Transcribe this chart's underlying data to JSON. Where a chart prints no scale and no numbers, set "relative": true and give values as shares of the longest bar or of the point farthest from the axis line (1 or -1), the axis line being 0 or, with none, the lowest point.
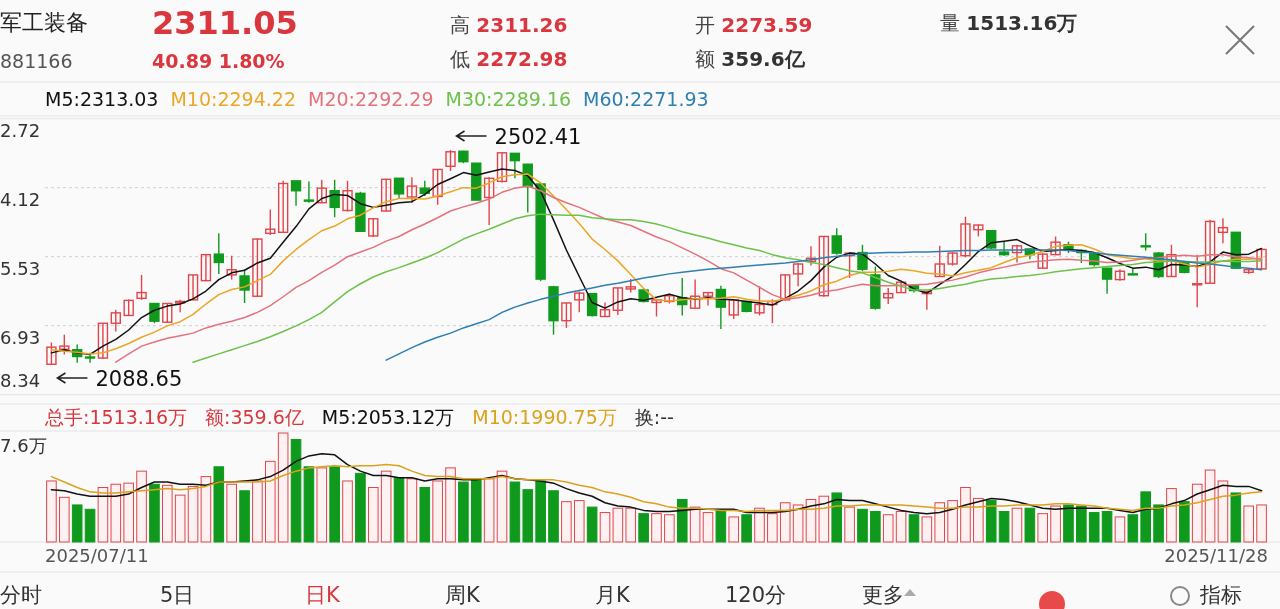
{
  "chart_data": [
    {
      "type": "candlestick",
      "title": "军工装备",
      "subtitle": "881166",
      "categories": [
        null,
        null,
        null,
        null,
        null,
        null,
        null,
        null,
        null,
        null,
        null,
        null,
        null,
        null,
        null,
        null,
        null,
        null,
        null,
        null,
        null,
        null,
        null,
        null,
        null,
        null,
        null,
        null,
        null,
        null,
        null,
        null,
        null,
        null,
        null,
        null,
        null,
        null,
        null,
        null,
        null,
        null,
        null,
        null,
        null,
        null,
        null,
        null,
        null,
        null,
        null,
        null,
        null,
        null,
        null,
        null,
        null,
        null,
        null,
        null,
        null,
        null,
        null,
        null,
        null,
        null,
        null,
        null,
        null,
        null,
        null,
        null,
        null,
        null,
        null,
        null,
        null,
        null,
        null,
        null,
        null,
        null,
        null,
        null,
        null,
        null,
        null,
        null,
        null,
        null,
        null,
        null,
        null,
        null,
        null
      ],
      "ohlc": [
        [
          2090,
          2132,
          2088.65,
          2123
        ],
        [
          2119,
          2147,
          2109,
          2125
        ],
        [
          2118,
          2128,
          2093,
          2105
        ],
        [
          2104,
          2112,
          2093,
          2103
        ],
        [
          2102,
          2169,
          2100,
          2169
        ],
        [
          2169,
          2195,
          2153,
          2189
        ],
        [
          2184,
          2215,
          2183,
          2213
        ],
        [
          2217,
          2262,
          2214,
          2228
        ],
        [
          2207,
          2207,
          2169,
          2173
        ],
        [
          2171,
          2207,
          2170,
          2207
        ],
        [
          2208,
          2214,
          2190,
          2211
        ],
        [
          2214,
          2262,
          2214,
          2262
        ],
        [
          2251,
          2301,
          2250,
          2301
        ],
        [
          2302,
          2342,
          2264,
          2286
        ],
        [
          2262,
          2299,
          2253,
          2272
        ],
        [
          2260,
          2272,
          2208,
          2233
        ],
        [
          2221,
          2332,
          2220,
          2331
        ],
        [
          2342,
          2388,
          2339,
          2350
        ],
        [
          2344,
          2443,
          2343,
          2438
        ],
        [
          2443,
          2443,
          2395,
          2424
        ],
        [
          2406,
          2442,
          2401,
          2404
        ],
        [
          2401,
          2445,
          2400,
          2429
        ],
        [
          2424,
          2445,
          2373,
          2392
        ],
        [
          2386,
          2443,
          2384,
          2424
        ],
        [
          2419,
          2422,
          2345,
          2346
        ],
        [
          2337,
          2371,
          2335,
          2370
        ],
        [
          2385,
          2447,
          2384,
          2446
        ],
        [
          2448,
          2448,
          2410,
          2418
        ],
        [
          2412,
          2450,
          2401,
          2433
        ],
        [
          2429,
          2443,
          2414,
          2419
        ],
        [
          2413,
          2465,
          2397,
          2465
        ],
        [
          2471,
          2502.41,
          2462,
          2499
        ],
        [
          2500,
          2501,
          2477,
          2480
        ],
        [
          2477,
          2477,
          2406,
          2406
        ],
        [
          2411,
          2450,
          2358,
          2448
        ],
        [
          2442,
          2497,
          2440,
          2497
        ],
        [
          2496,
          2496,
          2448,
          2482
        ],
        [
          2475,
          2476,
          2382,
          2432
        ],
        [
          2437,
          2437,
          2250,
          2254
        ],
        [
          2239,
          2241,
          2147,
          2174
        ],
        [
          2174,
          2208,
          2160,
          2208
        ],
        [
          2214,
          2230,
          2190,
          2227
        ],
        [
          2226,
          2226,
          2182,
          2184
        ],
        [
          2182,
          2209,
          2182,
          2195
        ],
        [
          2194,
          2237,
          2185,
          2237
        ],
        [
          2235,
          2254,
          2228,
          2239
        ],
        [
          2233,
          2235,
          2209,
          2211
        ],
        [
          2209,
          2216,
          2182,
          2214
        ],
        [
          2211,
          2226,
          2207,
          2222
        ],
        [
          2218,
          2256,
          2184,
          2205
        ],
        [
          2198,
          2253,
          2198,
          2221
        ],
        [
          2221,
          2229,
          2203,
          2228
        ],
        [
          2234,
          2241,
          2158,
          2200
        ],
        [
          2185,
          2215,
          2177,
          2214
        ],
        [
          2211,
          2212,
          2190,
          2192
        ],
        [
          2189,
          2240,
          2184,
          2205
        ],
        [
          2205,
          2215,
          2169,
          2211
        ],
        [
          2214,
          2263,
          2213,
          2262
        ],
        [
          2264,
          2285,
          2240,
          2283
        ],
        [
          2288,
          2317,
          2280,
          2294
        ],
        [
          2222,
          2336,
          2220,
          2336
        ],
        [
          2337,
          2352,
          2301,
          2304
        ],
        [
          2299,
          2305,
          2256,
          2304
        ],
        [
          2305,
          2320,
          2269,
          2273
        ],
        [
          2262,
          2278,
          2195,
          2198
        ],
        [
          2218,
          2237,
          2206,
          2226
        ],
        [
          2228,
          2249,
          2227,
          2248
        ],
        [
          2241,
          2242,
          2228,
          2232
        ],
        [
          2226,
          2232,
          2195,
          2230
        ],
        [
          2259,
          2318,
          2259,
          2283
        ],
        [
          2283,
          2306,
          2280,
          2304
        ],
        [
          2299,
          2374,
          2296,
          2360
        ],
        [
          2349,
          2359,
          2336,
          2358
        ],
        [
          2347,
          2347,
          2312,
          2314
        ],
        [
          2306,
          2326,
          2299,
          2301
        ],
        [
          2305,
          2320,
          2286,
          2318
        ],
        [
          2312,
          2313,
          2292,
          2301
        ],
        [
          2275,
          2303,
          2274,
          2302
        ],
        [
          2301,
          2336,
          2300,
          2325
        ],
        [
          2320,
          2326,
          2304,
          2310
        ],
        [
          2309,
          2311,
          2285,
          2305
        ],
        [
          2304,
          2305,
          2278,
          2282
        ],
        [
          2275,
          2276,
          2226,
          2254
        ],
        [
          2253,
          2273,
          2251,
          2269
        ],
        [
          2264,
          2275,
          2262,
          2263
        ],
        [
          2318,
          2342,
          2309,
          2317
        ],
        [
          2304,
          2306,
          2256,
          2259
        ],
        [
          2259,
          2320,
          2259,
          2301
        ],
        [
          2286,
          2289,
          2265,
          2267
        ],
        [
          2243,
          2301,
          2200,
          2245
        ],
        [
          2246,
          2368,
          2246,
          2365
        ],
        [
          2344,
          2371,
          2323,
          2353
        ],
        [
          2344,
          2344,
          2275,
          2275
        ],
        [
          2267,
          2273,
          2264,
          2272
        ],
        [
          2273.59,
          2311.26,
          2272.98,
          2311.05
        ]
      ],
      "colors": [
        "#e0454b",
        "#e0454b",
        "#0f9a1d",
        "#0f9a1d",
        "#e0454b",
        "#e0454b",
        "#e0454b",
        "#e0454b",
        "#0f9a1d",
        "#e0454b",
        "#e0454b",
        "#e0454b",
        "#e0454b",
        "#0f9a1d",
        "#e0454b",
        "#0f9a1d",
        "#e0454b",
        "#e0454b",
        "#e0454b",
        "#0f9a1d",
        "#0f9a1d",
        "#e0454b",
        "#0f9a1d",
        "#e0454b",
        "#0f9a1d",
        "#e0454b",
        "#e0454b",
        "#0f9a1d",
        "#e0454b",
        "#0f9a1d",
        "#e0454b",
        "#e0454b",
        "#0f9a1d",
        "#0f9a1d",
        "#e0454b",
        "#e0454b",
        "#0f9a1d",
        "#0f9a1d",
        "#0f9a1d",
        "#0f9a1d",
        "#e0454b",
        "#e0454b",
        "#0f9a1d",
        "#e0454b",
        "#e0454b",
        "#e0454b",
        "#0f9a1d",
        "#e0454b",
        "#e0454b",
        "#0f9a1d",
        "#e0454b",
        "#e0454b",
        "#0f9a1d",
        "#e0454b",
        "#0f9a1d",
        "#e0454b",
        "#e0454b",
        "#e0454b",
        "#e0454b",
        "#e0454b",
        "#e0454b",
        "#0f9a1d",
        "#e0454b",
        "#0f9a1d",
        "#0f9a1d",
        "#e0454b",
        "#e0454b",
        "#0f9a1d",
        "#e0454b",
        "#e0454b",
        "#e0454b",
        "#e0454b",
        "#e0454b",
        "#0f9a1d",
        "#0f9a1d",
        "#e0454b",
        "#0f9a1d",
        "#e0454b",
        "#e0454b",
        "#0f9a1d",
        "#0f9a1d",
        "#0f9a1d",
        "#0f9a1d",
        "#e0454b",
        "#0f9a1d",
        "#0f9a1d",
        "#0f9a1d",
        "#e0454b",
        "#0f9a1d",
        "#e0454b",
        "#e0454b",
        "#e0454b",
        "#0f9a1d",
        "#e0454b",
        "#e0454b"
      ],
      "series": [
        {
          "name": "M5:2313.03",
          "type": "line",
          "color": "#111111",
          "values": [
            2112,
            2118,
            2112,
            2109,
            2125,
            2138,
            2156,
            2180,
            2194,
            2202,
            2206,
            2216,
            2231,
            2253,
            2266,
            2271,
            2285,
            2294,
            2325,
            2355,
            2389,
            2409,
            2417,
            2415,
            2399,
            2392,
            2396,
            2401,
            2403,
            2417,
            2436,
            2447,
            2459,
            2454,
            2460,
            2466,
            2463,
            2453,
            2423,
            2368,
            2310,
            2259,
            2209,
            2198,
            2210,
            2216,
            2213,
            2219,
            2225,
            2218,
            2215,
            2218,
            2215,
            2214,
            2211,
            2208,
            2204,
            2217,
            2231,
            2251,
            2277,
            2296,
            2304,
            2302,
            2283,
            2261,
            2250,
            2235,
            2227,
            2244,
            2259,
            2282,
            2307,
            2324,
            2327,
            2330,
            2318,
            2307,
            2309,
            2311,
            2309,
            2305,
            2295,
            2284,
            2275,
            2277,
            2272,
            2282,
            2281,
            2278,
            2287,
            2306,
            2301,
            2302,
            2313.03
          ]
        },
        {
          "name": "M10:2294.22",
          "type": "line",
          "color": "#eba625",
          "values": [
            2118,
            2115,
            2113,
            2110,
            2112,
            2120,
            2130,
            2142,
            2152,
            2164,
            2172,
            2186,
            2206,
            2224,
            2234,
            2239,
            2251,
            2263,
            2289,
            2311,
            2330,
            2347,
            2356,
            2370,
            2377,
            2391,
            2403,
            2409,
            2409,
            2408,
            2414,
            2422,
            2430,
            2429,
            2439,
            2451,
            2455,
            2456,
            2439,
            2414,
            2388,
            2361,
            2331,
            2311,
            2289,
            2263,
            2236,
            2214,
            2212,
            2214,
            2216,
            2216,
            2217,
            2220,
            2215,
            2212,
            2211,
            2216,
            2223,
            2231,
            2243,
            2250,
            2261,
            2267,
            2267,
            2269,
            2273,
            2270,
            2265,
            2264,
            2260,
            2266,
            2271,
            2276,
            2286,
            2295,
            2300,
            2307,
            2317,
            2319,
            2320,
            2312,
            2301,
            2297,
            2293,
            2293,
            2289,
            2289,
            2283,
            2277,
            2282,
            2289,
            2292,
            2292,
            2294.22
          ]
        },
        {
          "name": "M20:2292.29",
          "type": "line",
          "color": "#e5717d",
          "values": [
            null,
            null,
            null,
            null,
            null,
            2094,
            2110,
            2125,
            2133,
            2140,
            2145,
            2150,
            2160,
            2167,
            2173,
            2180,
            2190,
            2203,
            2220,
            2238,
            2251,
            2267,
            2281,
            2297,
            2306,
            2315,
            2327,
            2336,
            2349,
            2360,
            2372,
            2385,
            2393,
            2400,
            2408,
            2421,
            2429,
            2433,
            2424,
            2411,
            2401,
            2392,
            2381,
            2370,
            2364,
            2357,
            2346,
            2335,
            2326,
            2314,
            2302,
            2289,
            2274,
            2266,
            2252,
            2238,
            2224,
            2215,
            2218,
            2223,
            2230,
            2233,
            2239,
            2244,
            2241,
            2241,
            2242,
            2243,
            2244,
            2248,
            2252,
            2258,
            2266,
            2272,
            2277,
            2282,
            2287,
            2289,
            2291,
            2292,
            2290,
            2289,
            2286,
            2287,
            2290,
            2294,
            2295,
            2298,
            2300,
            2298,
            2301,
            2301,
            2297,
            2295,
            2292.29
          ]
        },
        {
          "name": "M30:2289.16",
          "type": "line",
          "color": "#6cc24a",
          "values": [
            null,
            null,
            null,
            null,
            null,
            null,
            null,
            null,
            null,
            null,
            null,
            2094,
            2102,
            2110,
            2118,
            2126,
            2134,
            2143,
            2153,
            2164,
            2176,
            2190,
            2210,
            2230,
            2245,
            2258,
            2268,
            2276,
            2285,
            2294,
            2305,
            2318,
            2331,
            2341,
            2350,
            2360,
            2370,
            2376,
            2379,
            2378,
            2377,
            2377,
            2372,
            2370,
            2368,
            2368,
            2365,
            2360,
            2353,
            2345,
            2339,
            2333,
            2326,
            2320,
            2314,
            2309,
            2301,
            2295,
            2291,
            2286,
            2282,
            2276,
            2270,
            2266,
            2257,
            2248,
            2240,
            2233,
            2233,
            2236,
            2240,
            2244,
            2250,
            2254,
            2256,
            2259,
            2261,
            2264,
            2268,
            2271,
            2274,
            2276,
            2278,
            2280,
            2282,
            2286,
            2287,
            2289,
            2288,
            2287,
            2287,
            2289,
            2288,
            2288,
            2289.16
          ]
        },
        {
          "name": "M60:2271.93",
          "type": "line",
          "color": "#2f7fb0",
          "values": [
            null,
            null,
            null,
            null,
            null,
            null,
            null,
            null,
            null,
            null,
            null,
            null,
            null,
            null,
            null,
            null,
            null,
            null,
            null,
            null,
            null,
            null,
            null,
            null,
            null,
            null,
            2098,
            2110,
            2122,
            2133,
            2142,
            2150,
            2160,
            2168,
            2176,
            2190,
            2200,
            2208,
            2215,
            2221,
            2227,
            2232,
            2237,
            2242,
            2246,
            2251,
            2256,
            2260,
            2264,
            2267,
            2270,
            2273,
            2275,
            2277,
            2279,
            2281,
            2283,
            2285,
            2288,
            2291,
            2295,
            2298,
            2300,
            2303,
            2304,
            2305,
            2305,
            2306,
            2306,
            2307,
            2308,
            2309,
            2309,
            2310,
            2310,
            2310,
            2310,
            2310,
            2310,
            2309,
            2306,
            2304,
            2302,
            2300,
            2298,
            2296,
            2293,
            2291,
            2288,
            2285,
            2283,
            2280,
            2277,
            2275,
            2271.93
          ]
        }
      ],
      "grid": "y",
      "legend": "top left",
      "annotations": [
        "2311.05",
        "40.89 1.80%",
        "高 2311.26",
        "低 2272.98",
        "开 2273.59",
        "额 359.6亿",
        "量 1513.16万",
        "2502.41",
        "2088.65",
        "2.72",
        "4.12",
        "5.53",
        "6.93",
        "8.34"
      ]
    },
    {
      "type": "bar",
      "relative": true,
      "legend": "top left",
      "categories": [
        null,
        null,
        null,
        null,
        null,
        null,
        null,
        null,
        null,
        null,
        null,
        null,
        null,
        null,
        null,
        null,
        null,
        null,
        null,
        null,
        null,
        null,
        null,
        null,
        null,
        null,
        null,
        null,
        null,
        null,
        null,
        null,
        null,
        null,
        null,
        null,
        null,
        null,
        null,
        null,
        null,
        null,
        null,
        null,
        null,
        null,
        null,
        null,
        null,
        null,
        null,
        null,
        null,
        null,
        null,
        null,
        null,
        null,
        null,
        null,
        null,
        null,
        null,
        null,
        null,
        null,
        null,
        null,
        null,
        null,
        null,
        null,
        null,
        null,
        null,
        null,
        null,
        null,
        null,
        null,
        null,
        null,
        null,
        null,
        null,
        null,
        null,
        null,
        null,
        null,
        null,
        null,
        null,
        null,
        null
      ],
      "values": [
        0.56,
        0.41,
        0.34,
        0.3,
        0.5,
        0.53,
        0.54,
        0.65,
        0.53,
        0.52,
        0.43,
        0.51,
        0.6,
        0.69,
        0.53,
        0.47,
        0.56,
        0.74,
        1,
        0.94,
        0.69,
        0.68,
        0.69,
        0.56,
        0.63,
        0.5,
        0.65,
        0.59,
        0.58,
        0.5,
        0.56,
        0.68,
        0.55,
        0.57,
        0.58,
        0.65,
        0.55,
        0.48,
        0.56,
        0.47,
        0.37,
        0.38,
        0.32,
        0.27,
        0.31,
        0.31,
        0.26,
        0.26,
        0.25,
        0.39,
        0.32,
        0.27,
        0.29,
        0.23,
        0.25,
        0.31,
        0.26,
        0.36,
        0.34,
        0.39,
        0.42,
        0.45,
        0.32,
        0.3,
        0.28,
        0.25,
        0.28,
        0.25,
        0.23,
        0.36,
        0.38,
        0.5,
        0.4,
        0.38,
        0.28,
        0.31,
        0.31,
        0.26,
        0.33,
        0.34,
        0.33,
        0.27,
        0.28,
        0.23,
        0.25,
        0.46,
        0.34,
        0.49,
        0.37,
        0.53,
        0.66,
        0.56,
        0.45,
        0.33,
        0.34
      ],
      "colors": [
        "#e0454b",
        "#e0454b",
        "#0f9a1d",
        "#0f9a1d",
        "#e0454b",
        "#e0454b",
        "#e0454b",
        "#e0454b",
        "#0f9a1d",
        "#e0454b",
        "#e0454b",
        "#e0454b",
        "#e0454b",
        "#0f9a1d",
        "#e0454b",
        "#0f9a1d",
        "#e0454b",
        "#e0454b",
        "#e0454b",
        "#0f9a1d",
        "#0f9a1d",
        "#e0454b",
        "#0f9a1d",
        "#e0454b",
        "#0f9a1d",
        "#e0454b",
        "#e0454b",
        "#0f9a1d",
        "#e0454b",
        "#0f9a1d",
        "#e0454b",
        "#e0454b",
        "#0f9a1d",
        "#0f9a1d",
        "#e0454b",
        "#e0454b",
        "#0f9a1d",
        "#0f9a1d",
        "#0f9a1d",
        "#0f9a1d",
        "#e0454b",
        "#e0454b",
        "#0f9a1d",
        "#e0454b",
        "#e0454b",
        "#e0454b",
        "#0f9a1d",
        "#e0454b",
        "#e0454b",
        "#0f9a1d",
        "#e0454b",
        "#e0454b",
        "#0f9a1d",
        "#e0454b",
        "#0f9a1d",
        "#e0454b",
        "#e0454b",
        "#e0454b",
        "#e0454b",
        "#e0454b",
        "#e0454b",
        "#0f9a1d",
        "#e0454b",
        "#0f9a1d",
        "#0f9a1d",
        "#e0454b",
        "#e0454b",
        "#0f9a1d",
        "#e0454b",
        "#e0454b",
        "#e0454b",
        "#e0454b",
        "#e0454b",
        "#0f9a1d",
        "#0f9a1d",
        "#e0454b",
        "#0f9a1d",
        "#e0454b",
        "#e0454b",
        "#0f9a1d",
        "#0f9a1d",
        "#0f9a1d",
        "#0f9a1d",
        "#e0454b",
        "#0f9a1d",
        "#0f9a1d",
        "#0f9a1d",
        "#e0454b",
        "#0f9a1d",
        "#e0454b",
        "#e0454b",
        "#e0454b",
        "#0f9a1d",
        "#e0454b",
        "#e0454b"
      ],
      "series": [
        {
          "name": "M5:2053.12万",
          "type": "line",
          "color": "#111111",
          "values": [
            0.48,
            0.47,
            0.44,
            0.42,
            0.42,
            0.42,
            0.44,
            0.5,
            0.55,
            0.55,
            0.53,
            0.53,
            0.52,
            0.55,
            0.55,
            0.56,
            0.57,
            0.6,
            0.66,
            0.74,
            0.79,
            0.81,
            0.8,
            0.71,
            0.65,
            0.61,
            0.61,
            0.59,
            0.59,
            0.56,
            0.58,
            0.58,
            0.57,
            0.57,
            0.59,
            0.61,
            0.58,
            0.57,
            0.56,
            0.54,
            0.49,
            0.45,
            0.42,
            0.36,
            0.33,
            0.32,
            0.29,
            0.28,
            0.28,
            0.29,
            0.3,
            0.3,
            0.3,
            0.3,
            0.27,
            0.27,
            0.27,
            0.28,
            0.3,
            0.33,
            0.35,
            0.39,
            0.38,
            0.38,
            0.35,
            0.32,
            0.29,
            0.27,
            0.26,
            0.27,
            0.3,
            0.34,
            0.37,
            0.4,
            0.39,
            0.37,
            0.34,
            0.31,
            0.3,
            0.31,
            0.31,
            0.31,
            0.31,
            0.29,
            0.27,
            0.3,
            0.31,
            0.35,
            0.38,
            0.44,
            0.48,
            0.52,
            0.51,
            0.51,
            0.47
          ]
        },
        {
          "name": "M10:1990.75万",
          "type": "line",
          "color": "#dba21c",
          "values": [
            0.6,
            0.55,
            0.5,
            0.46,
            0.45,
            0.45,
            0.46,
            0.47,
            0.48,
            0.49,
            0.48,
            0.49,
            0.51,
            0.55,
            0.55,
            0.55,
            0.55,
            0.56,
            0.61,
            0.65,
            0.68,
            0.69,
            0.7,
            0.69,
            0.7,
            0.7,
            0.71,
            0.7,
            0.65,
            0.61,
            0.6,
            0.6,
            0.58,
            0.58,
            0.58,
            0.6,
            0.58,
            0.57,
            0.57,
            0.57,
            0.55,
            0.52,
            0.5,
            0.46,
            0.44,
            0.41,
            0.37,
            0.35,
            0.32,
            0.31,
            0.31,
            0.3,
            0.29,
            0.29,
            0.28,
            0.29,
            0.29,
            0.29,
            0.3,
            0.3,
            0.31,
            0.33,
            0.33,
            0.34,
            0.34,
            0.34,
            0.34,
            0.33,
            0.32,
            0.31,
            0.31,
            0.32,
            0.32,
            0.33,
            0.33,
            0.34,
            0.34,
            0.34,
            0.35,
            0.35,
            0.34,
            0.33,
            0.31,
            0.3,
            0.29,
            0.31,
            0.31,
            0.33,
            0.34,
            0.36,
            0.39,
            0.42,
            0.43,
            0.45,
            0.46
          ]
        }
      ],
      "annotations": [
        "总手:1513.16万",
        "额:359.6亿",
        "换:--",
        "7.6万",
        "分时",
        "5日",
        "日K",
        "周K",
        "月K",
        "120分",
        "更多",
        "指标",
        "2025/07/11",
        "2025/11/28"
      ]
    }
  ]
}
